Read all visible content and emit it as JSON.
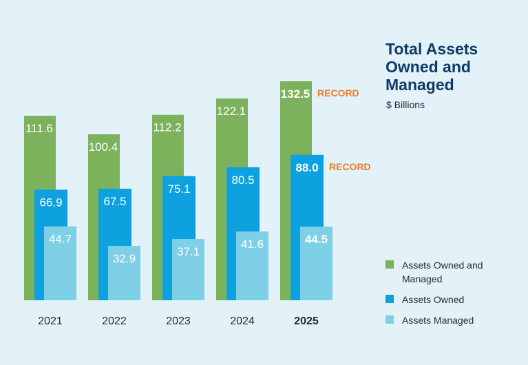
{
  "chart_data": {
    "type": "bar",
    "title": "Total Assets Owned and Managed",
    "subtitle": "$ Billions",
    "categories": [
      "2021",
      "2022",
      "2023",
      "2024",
      "2025"
    ],
    "highlight_category": "2025",
    "series": [
      {
        "name": "Assets Owned and Managed",
        "color": "#7db25d",
        "values": [
          111.6,
          100.4,
          112.2,
          122.1,
          132.5
        ]
      },
      {
        "name": "Assets Owned",
        "color": "#0ea1df",
        "values": [
          66.9,
          67.5,
          75.1,
          80.5,
          88.0
        ]
      },
      {
        "name": "Assets Managed",
        "color": "#7dd0e6",
        "values": [
          44.7,
          32.9,
          37.1,
          41.6,
          44.5
        ]
      }
    ],
    "annotations": [
      {
        "series": "Assets Owned and Managed",
        "category": "2025",
        "text": "RECORD",
        "color": "#ef7d2a"
      },
      {
        "series": "Assets Owned",
        "category": "2025",
        "text": "RECORD",
        "color": "#ef7d2a"
      }
    ],
    "ylim": [
      0,
      140
    ],
    "grid": false,
    "legend_position": "bottom-right"
  }
}
